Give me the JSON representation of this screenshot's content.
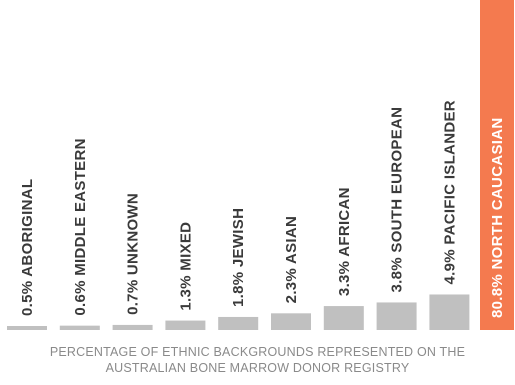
{
  "chart_data": {
    "type": "bar",
    "orientation": "vertical",
    "categories": [
      "ABORIGINAL",
      "MIDDLE EASTERN",
      "UNKNOWN",
      "MIXED",
      "JEWISH",
      "ASIAN",
      "AFRICAN",
      "SOUTH EUROPEAN",
      "PACIFIC ISLANDER",
      "NORTH CAUCASIAN"
    ],
    "values": [
      0.5,
      0.6,
      0.7,
      1.3,
      1.8,
      2.3,
      3.3,
      3.8,
      4.9,
      80.8
    ],
    "labels": [
      "0.5% ABORIGINAL",
      "0.6% MIDDLE EASTERN",
      "0.7% UNKNOWN",
      "1.3% MIXED",
      "1.8% JEWISH",
      "2.3% ASIAN",
      "3.3% AFRICAN",
      "3.8% SOUTH EUROPEAN",
      "4.9% PACIFIC ISLANDER",
      "80.8% NORTH CAUCASIAN"
    ],
    "highlight_index": 9,
    "colors": {
      "bar": "#c0c0c0",
      "highlight": "#f47a4f",
      "label": "#3a3a3a",
      "highlight_label": "#ffffff"
    },
    "caption_lines": [
      "PERCENTAGE OF ETHNIC BACKGROUNDS REPRESENTED ON THE",
      "AUSTRALIAN BONE MARROW DONOR REGISTRY"
    ]
  }
}
